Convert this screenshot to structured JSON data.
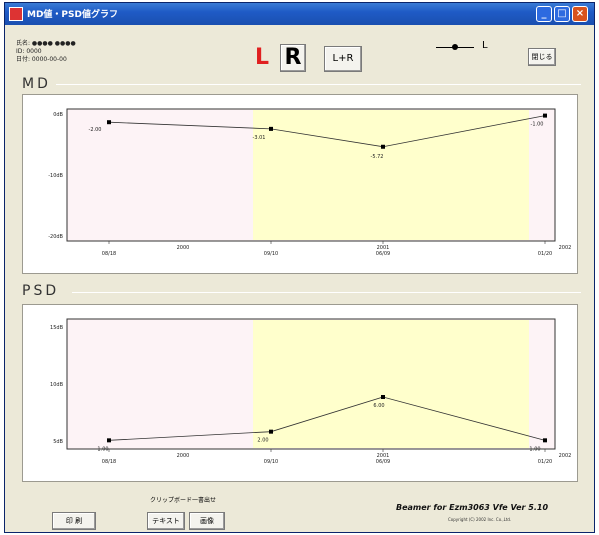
{
  "window": {
    "title": "MD値・PSD値グラフ",
    "minimize": "_",
    "maximize": "□",
    "close": "×"
  },
  "info": {
    "line1": "氏名: ●●●● ●●●●",
    "line2": "ID: 0000",
    "line3": "日付: 0000-00-00"
  },
  "toolbar": {
    "left_label": "L",
    "right_label": "R",
    "both_label": "L+R",
    "close_label": "閉じる"
  },
  "legend": {
    "label": "L"
  },
  "md": {
    "label": "MD",
    "y_ticks": [
      "0dB",
      "-10dB",
      "-20dB"
    ],
    "points": [
      {
        "label": "-2.00",
        "value": -2.0
      },
      {
        "label": "-3.01",
        "value": -3.01
      },
      {
        "label": "-5.72",
        "value": -5.72
      },
      {
        "label": "-1.00",
        "value": -1.0
      }
    ],
    "x_labels": [
      "08/18",
      "09/10",
      "06/09",
      "01/20"
    ],
    "year_labels": [
      "2000",
      "2001",
      "2002"
    ]
  },
  "psd": {
    "label": "PSD",
    "y_ticks": [
      "15dB",
      "10dB",
      "5dB"
    ],
    "points": [
      {
        "label": "1.00",
        "value": 1.0
      },
      {
        "label": "2.00",
        "value": 2.0
      },
      {
        "label": "6.00",
        "value": 6.0
      },
      {
        "label": "1.00",
        "value": 1.0
      }
    ],
    "x_labels": [
      "08/18",
      "09/10",
      "06/09",
      "01/20"
    ],
    "year_labels": [
      "2000",
      "2001",
      "2002"
    ]
  },
  "footer": {
    "clipboard_label": "クリップボード一書出せ",
    "print_label": "印 刷",
    "text_label": "テキスト",
    "image_label": "画像",
    "version": "Beamer for Ezm3063 Vfe Ver 5.10",
    "copyright": "Copyright (C) 2002 Inc. Co.,Ltd."
  },
  "colors": {
    "highlight": "#ffffcc",
    "outside": "#fdf3f6"
  },
  "chart_data": [
    {
      "type": "line",
      "title": "MD",
      "categories": [
        "08/18",
        "09/10",
        "06/09",
        "01/20"
      ],
      "values": [
        -2.0,
        -3.01,
        -5.72,
        -1.0
      ],
      "ylim": [
        -20,
        0
      ],
      "grid": false
    },
    {
      "type": "line",
      "title": "PSD",
      "categories": [
        "08/18",
        "09/10",
        "06/09",
        "01/20"
      ],
      "values": [
        1.0,
        2.0,
        6.0,
        1.0
      ],
      "ylim": [
        0,
        15
      ],
      "grid": false
    }
  ]
}
